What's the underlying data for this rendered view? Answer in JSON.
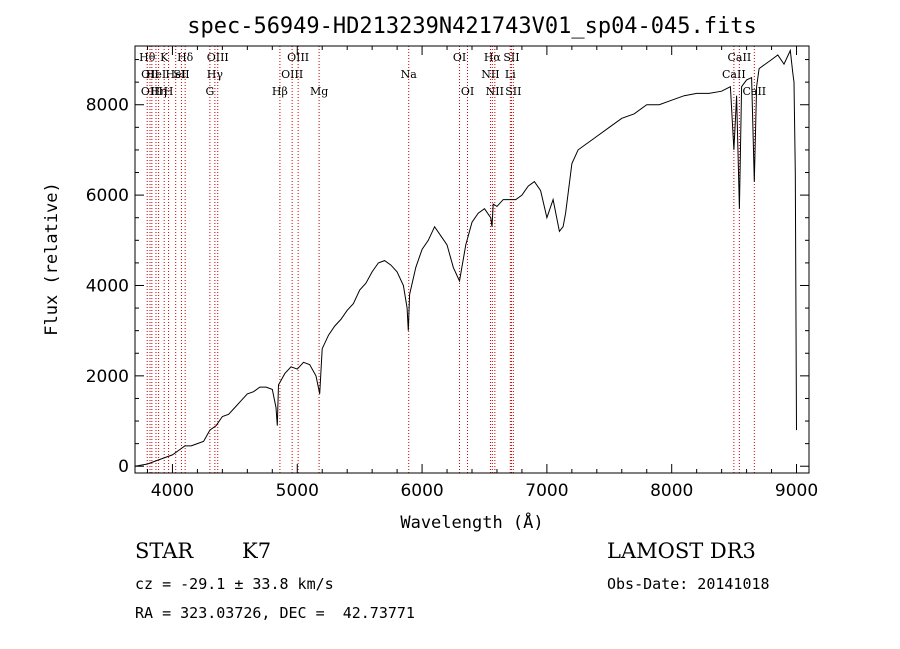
{
  "chart_data": {
    "type": "line",
    "title": "spec-56949-HD213239N421743V01_sp04-045.fits",
    "xlabel": "Wavelength (Å)",
    "ylabel": "Flux (relative)",
    "xlim": [
      3700,
      9100
    ],
    "ylim": [
      -150,
      9300
    ],
    "xticks": [
      4000,
      5000,
      6000,
      7000,
      8000,
      9000
    ],
    "yticks": [
      0,
      2000,
      4000,
      6000,
      8000
    ],
    "grid": false,
    "series": [
      {
        "name": "spectrum",
        "x": [
          3700,
          3800,
          3900,
          4000,
          4050,
          4100,
          4150,
          4200,
          4250,
          4300,
          4350,
          4400,
          4450,
          4500,
          4550,
          4600,
          4650,
          4700,
          4750,
          4800,
          4830,
          4840,
          4850,
          4900,
          4950,
          5000,
          5050,
          5100,
          5150,
          5180,
          5200,
          5250,
          5300,
          5350,
          5400,
          5450,
          5500,
          5550,
          5600,
          5650,
          5700,
          5750,
          5800,
          5850,
          5880,
          5890,
          5900,
          5950,
          6000,
          6050,
          6100,
          6150,
          6200,
          6250,
          6300,
          6350,
          6400,
          6450,
          6500,
          6550,
          6560,
          6570,
          6600,
          6650,
          6700,
          6750,
          6800,
          6850,
          6900,
          6950,
          7000,
          7050,
          7100,
          7130,
          7150,
          7200,
          7250,
          7300,
          7350,
          7400,
          7500,
          7600,
          7700,
          7800,
          7900,
          8000,
          8100,
          8200,
          8300,
          8400,
          8470,
          8498,
          8520,
          8542,
          8560,
          8600,
          8640,
          8662,
          8680,
          8700,
          8750,
          8800,
          8850,
          8900,
          8950,
          8970,
          8980,
          8990,
          9000
        ],
        "y": [
          0,
          50,
          150,
          250,
          350,
          450,
          450,
          500,
          550,
          800,
          900,
          1100,
          1150,
          1300,
          1450,
          1600,
          1650,
          1750,
          1750,
          1700,
          1300,
          900,
          1800,
          2050,
          2200,
          2150,
          2300,
          2250,
          2000,
          1600,
          2600,
          2900,
          3100,
          3250,
          3450,
          3600,
          3900,
          4050,
          4300,
          4500,
          4550,
          4450,
          4300,
          4000,
          3500,
          3000,
          3800,
          4400,
          4800,
          5000,
          5300,
          5100,
          4900,
          4400,
          4100,
          4900,
          5400,
          5600,
          5700,
          5500,
          5300,
          5800,
          5750,
          5900,
          5900,
          5900,
          6000,
          6200,
          6300,
          6100,
          5500,
          5900,
          5200,
          5300,
          5600,
          6700,
          7000,
          7100,
          7200,
          7300,
          7500,
          7700,
          7800,
          8000,
          8000,
          8100,
          8200,
          8250,
          8250,
          8300,
          8400,
          7000,
          8200,
          5700,
          8400,
          8550,
          8600,
          6300,
          8400,
          8800,
          8900,
          9000,
          9100,
          8900,
          9200,
          8700,
          8500,
          6500,
          800
        ]
      }
    ],
    "lines": [
      {
        "w": 3798,
        "label": "Hθ",
        "row": 0
      },
      {
        "w": 3820,
        "label": "OII",
        "row": 1
      },
      {
        "w": 3835,
        "label": "OIII",
        "row": 2
      },
      {
        "w": 3868,
        "label": "HeI",
        "row": 1
      },
      {
        "w": 3889,
        "label": "Hη",
        "row": 2
      },
      {
        "w": 3934,
        "label": "K",
        "row": 0
      },
      {
        "w": 3969,
        "label": "H",
        "row": 2
      },
      {
        "w": 4026,
        "label": "HeI",
        "row": 1
      },
      {
        "w": 4072,
        "label": "SII",
        "row": 1
      },
      {
        "w": 4102,
        "label": "Hδ",
        "row": 0
      },
      {
        "w": 4300,
        "label": "G",
        "row": 2
      },
      {
        "w": 4340,
        "label": "Hγ",
        "row": 1
      },
      {
        "w": 4363,
        "label": "OIII",
        "row": 0
      },
      {
        "w": 4861,
        "label": "Hβ",
        "row": 2
      },
      {
        "w": 4959,
        "label": "OIII",
        "row": 1
      },
      {
        "w": 5007,
        "label": "OIII",
        "row": 0
      },
      {
        "w": 5175,
        "label": "Mg",
        "row": 2
      },
      {
        "w": 5893,
        "label": "Na",
        "row": 1
      },
      {
        "w": 6300,
        "label": "OI",
        "row": 0
      },
      {
        "w": 6364,
        "label": "OI",
        "row": 2
      },
      {
        "w": 6548,
        "label": "NII",
        "row": 1
      },
      {
        "w": 6563,
        "label": "Hα",
        "row": 0
      },
      {
        "w": 6583,
        "label": "NII",
        "row": 2
      },
      {
        "w": 6707,
        "label": "Li",
        "row": 1
      },
      {
        "w": 6716,
        "label": "SII",
        "row": 0
      },
      {
        "w": 6731,
        "label": "SII",
        "row": 2
      },
      {
        "w": 8498,
        "label": "CaII",
        "row": 1
      },
      {
        "w": 8542,
        "label": "CaII",
        "row": 0
      },
      {
        "w": 8662,
        "label": "CaII",
        "row": 2
      }
    ]
  },
  "info": {
    "class_label": "STAR",
    "subclass": "K7",
    "survey": "LAMOST DR3",
    "redshift": "cz = -29.1 ± 33.8 km/s",
    "obs_date": "Obs-Date: 20141018",
    "coords": "RA = 323.03726, DEC =  42.73771"
  },
  "colors": {
    "spectrum": "#000000",
    "line_marker": "#cc0000",
    "axes": "#000000"
  }
}
